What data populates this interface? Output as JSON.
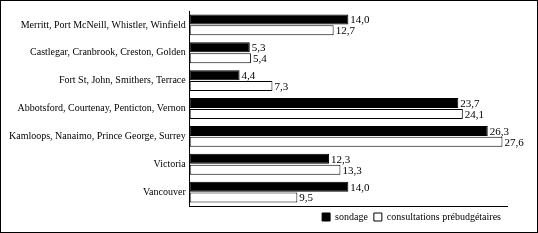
{
  "chart_data": {
    "type": "bar",
    "orientation": "horizontal",
    "categories": [
      "Merritt, Port McNeill, Whistler, Winfield",
      "Castlegar, Cranbrook, Creston, Golden",
      "Fort St, John, Smithers, Terrace",
      "Abbotsford, Courtenay, Penticton, Vernon",
      "Kamloops, Nanaimo, Prince George, Surrey",
      "Victoria",
      "Vancouver"
    ],
    "series": [
      {
        "name": "sondage",
        "color": "#000000",
        "values": [
          14.0,
          5.3,
          4.4,
          23.7,
          26.3,
          12.3,
          14.0
        ],
        "value_labels": [
          "14,0",
          "5,3",
          "4,4",
          "23,7",
          "26,3",
          "12,3",
          "14,0"
        ]
      },
      {
        "name": "consultations prébudgétaires",
        "color": "#ffffff",
        "values": [
          12.7,
          5.4,
          7.3,
          24.1,
          27.6,
          13.3,
          9.5
        ],
        "value_labels": [
          "12,7",
          "5,4",
          "7,3",
          "24,1",
          "27,6",
          "13,3",
          "9,5"
        ]
      }
    ],
    "xlim": [
      0,
      28
    ],
    "grid": false,
    "data_labels": true,
    "tick_labels": "y",
    "legend": "lower right"
  }
}
